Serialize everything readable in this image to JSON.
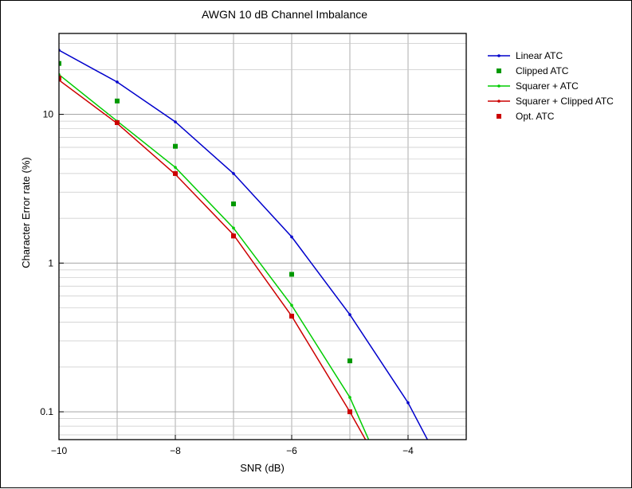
{
  "chart_data": {
    "type": "line",
    "title": "AWGN 10 dB Channel Imbalance",
    "xlabel": "SNR (dB)",
    "ylabel": "Character Error rate (%)",
    "xlim": [
      -10,
      -3
    ],
    "ylim": [
      0.065,
      35
    ],
    "yscale": "log",
    "grid": true,
    "legend_position": "right",
    "x_ticks": [
      -10,
      -8,
      -6,
      -4
    ],
    "x_tick_labels": [
      "−10",
      "−8",
      "−6",
      "−4"
    ],
    "y_ticks": [
      0.1,
      1,
      10
    ],
    "y_tick_labels": [
      "0.1",
      "1",
      "10"
    ],
    "series": [
      {
        "name": "Linear ATC",
        "style": "line",
        "color": "#0000cc",
        "x": [
          -10,
          -9,
          -8,
          -7,
          -6,
          -5,
          -4,
          -3.6
        ],
        "y": [
          27,
          16.5,
          8.9,
          4.0,
          1.5,
          0.45,
          0.115,
          0.058
        ]
      },
      {
        "name": "Clipped ATC",
        "style": "markers",
        "color": "#009900",
        "x": [
          -10,
          -9,
          -8,
          -7,
          -6,
          -5
        ],
        "y": [
          22,
          12.3,
          6.1,
          2.5,
          0.84,
          0.22
        ]
      },
      {
        "name": "Squarer + ATC",
        "style": "line",
        "color": "#00cc00",
        "x": [
          -10,
          -9,
          -8,
          -7,
          -6,
          -5,
          -4.62
        ],
        "y": [
          18.5,
          9.0,
          4.4,
          1.72,
          0.52,
          0.125,
          0.058
        ]
      },
      {
        "name": "Squarer + Clipped ATC",
        "style": "line",
        "color": "#cc0000",
        "x": [
          -10,
          -9,
          -8,
          -7,
          -6,
          -5,
          -4.66
        ],
        "y": [
          17.0,
          8.7,
          3.95,
          1.55,
          0.44,
          0.1,
          0.058
        ]
      },
      {
        "name": "Opt. ATC",
        "style": "markers",
        "color": "#cc0000",
        "x": [
          -10,
          -9,
          -8,
          -7,
          -6,
          -5
        ],
        "y": [
          17.5,
          8.8,
          4.0,
          1.52,
          0.44,
          0.1
        ]
      }
    ]
  }
}
